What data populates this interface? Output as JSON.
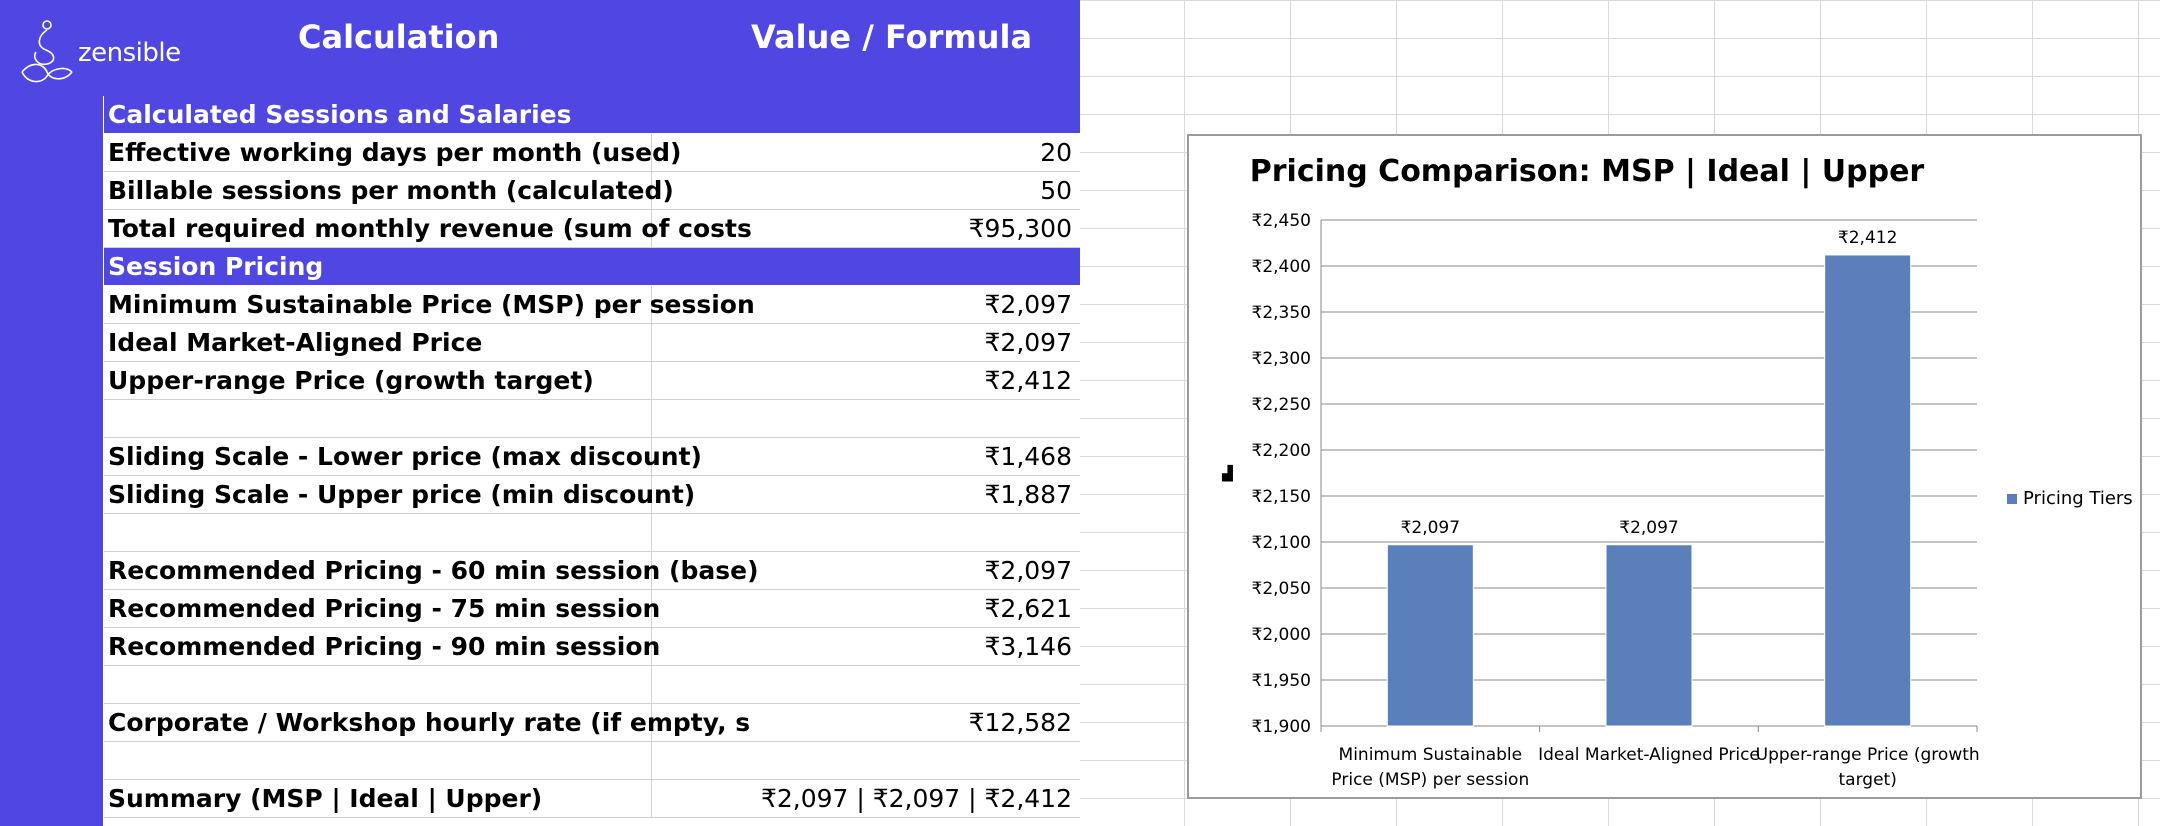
{
  "brand": {
    "name": "zensible"
  },
  "header": {
    "col1": "Calculation",
    "col2": "Value / Formula"
  },
  "rows": [
    {
      "type": "section",
      "label": "Calculated Sessions and Salaries",
      "value": ""
    },
    {
      "type": "data",
      "label": "Effective working days per month (used)",
      "value": "20"
    },
    {
      "type": "data",
      "label": "Billable sessions per month (calculated)",
      "value": "50"
    },
    {
      "type": "data",
      "label": "Total required monthly revenue (sum of costs",
      "value": "₹95,300"
    },
    {
      "type": "section",
      "label": "Session Pricing",
      "value": ""
    },
    {
      "type": "data",
      "label": "Minimum Sustainable Price (MSP) per session",
      "value": "₹2,097"
    },
    {
      "type": "data",
      "label": "Ideal Market-Aligned Price",
      "value": "₹2,097"
    },
    {
      "type": "data",
      "label": "Upper-range Price (growth target)",
      "value": "₹2,412"
    },
    {
      "type": "blank",
      "label": "",
      "value": ""
    },
    {
      "type": "data",
      "label": "Sliding Scale - Lower price (max discount)",
      "value": "₹1,468"
    },
    {
      "type": "data",
      "label": "Sliding Scale - Upper price (min discount)",
      "value": "₹1,887"
    },
    {
      "type": "blank",
      "label": "",
      "value": ""
    },
    {
      "type": "data",
      "label": "Recommended Pricing - 60 min session (base)",
      "value": "₹2,097"
    },
    {
      "type": "data",
      "label": "Recommended Pricing - 75 min session",
      "value": "₹2,621"
    },
    {
      "type": "data",
      "label": "Recommended Pricing - 90 min session",
      "value": "₹3,146"
    },
    {
      "type": "blank",
      "label": "",
      "value": ""
    },
    {
      "type": "data",
      "label": "Corporate / Workshop hourly rate (if empty, s",
      "value": "₹12,582"
    },
    {
      "type": "blank",
      "label": "",
      "value": ""
    },
    {
      "type": "data",
      "label": "Summary (MSP | Ideal | Upper)",
      "value": "₹2,097 | ₹2,097 | ₹2,412"
    }
  ],
  "chart_data": {
    "type": "bar",
    "title": "Pricing Comparison: MSP | Ideal | Upper",
    "categories": [
      [
        "Minimum Sustainable",
        "Price (MSP) per session"
      ],
      [
        "Ideal Market-Aligned Price"
      ],
      [
        "Upper-range Price (growth",
        "target)"
      ]
    ],
    "series": [
      {
        "name": "Pricing Tiers",
        "values": [
          2097,
          2097,
          2412
        ],
        "labels": [
          "₹2,097",
          "₹2,097",
          "₹2,412"
        ]
      }
    ],
    "ylim": [
      1900,
      2450
    ],
    "yticks": [
      "₹1,900",
      "₹1,950",
      "₹2,000",
      "₹2,050",
      "₹2,100",
      "₹2,150",
      "₹2,200",
      "₹2,250",
      "₹2,300",
      "₹2,350",
      "₹2,400",
      "₹2,450"
    ],
    "grid": true,
    "legend": "right",
    "color": "#5b7fba"
  }
}
